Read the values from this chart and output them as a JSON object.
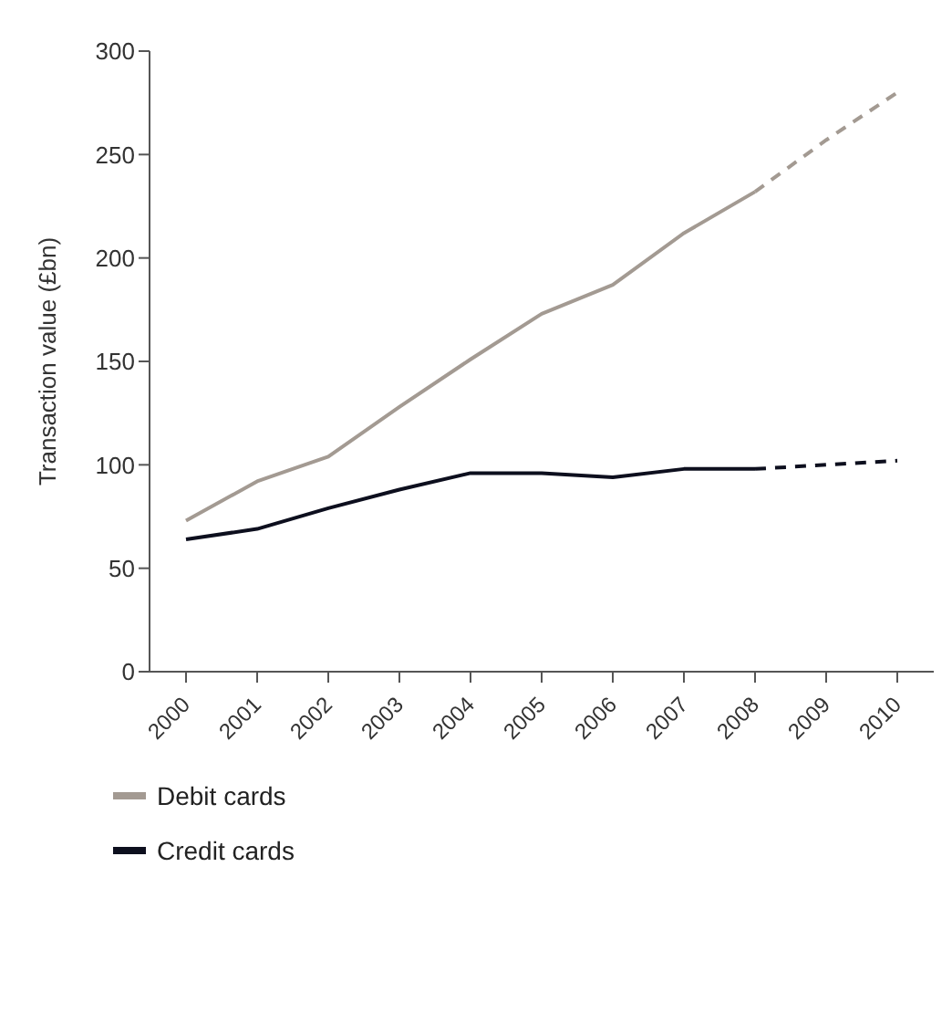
{
  "chart_data": {
    "type": "line",
    "ylabel": "Transaction value (£bn)",
    "categories": [
      "2000",
      "2001",
      "2002",
      "2003",
      "2004",
      "2005",
      "2006",
      "2007",
      "2008",
      "2009",
      "2010"
    ],
    "series": [
      {
        "name": "Debit cards",
        "color": "#a39a92",
        "line_style": "solid",
        "values": [
          73,
          92,
          104,
          128,
          151,
          173,
          187,
          212,
          232,
          null,
          null
        ]
      },
      {
        "color": "#a39a92",
        "line_style": "dashed",
        "values": [
          null,
          null,
          null,
          null,
          null,
          null,
          null,
          null,
          232,
          257,
          280
        ]
      },
      {
        "name": "Credit cards",
        "color": "#0d0f1e",
        "line_style": "solid",
        "values": [
          64,
          69,
          79,
          88,
          96,
          96,
          94,
          98,
          98,
          null,
          null
        ]
      },
      {
        "color": "#0d0f1e",
        "line_style": "dashed",
        "values": [
          null,
          null,
          null,
          null,
          null,
          null,
          null,
          null,
          98,
          100,
          102
        ]
      }
    ],
    "ylim": [
      0,
      300
    ],
    "yticks": [
      0,
      50,
      100,
      150,
      200,
      250,
      300
    ],
    "grid": false,
    "legend": "bottom",
    "marker": "none"
  }
}
